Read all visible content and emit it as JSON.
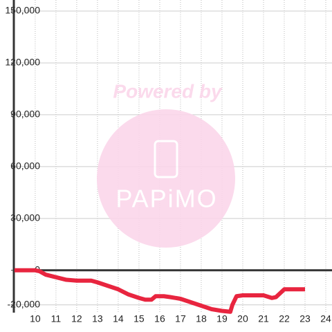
{
  "chart_data": {
    "type": "line",
    "watermark": {
      "top": "Powered by",
      "logo": "PAPiMO"
    },
    "x": [
      9,
      10,
      10.2,
      10.5,
      11,
      11.5,
      12,
      12.7,
      13,
      13.5,
      14,
      14.5,
      15,
      15.3,
      15.6,
      15.8,
      16.2,
      16.5,
      17,
      17.5,
      18,
      18.5,
      19,
      19.4,
      19.5,
      19.7,
      20,
      21,
      21.4,
      21.6,
      22,
      23
    ],
    "series": [
      {
        "color": "#e8253f",
        "values": [
          0,
          0,
          -500,
          -2500,
          -4000,
          -5500,
          -6000,
          -6000,
          -7000,
          -9000,
          -11000,
          -14000,
          -16000,
          -17000,
          -17000,
          -15000,
          -15000,
          -15500,
          -16500,
          -18500,
          -20500,
          -22500,
          -23500,
          -24000,
          -20000,
          -15000,
          -14500,
          -14500,
          -16000,
          -15500,
          -11000,
          -11000
        ]
      }
    ],
    "xlim": [
      8.97,
      24.3
    ],
    "xticks": [
      10,
      11,
      12,
      13,
      14,
      15,
      16,
      17,
      18,
      19,
      20,
      21,
      22,
      23,
      24
    ],
    "ylim": [
      -24500,
      150000
    ],
    "yticks": [
      {
        "value": 150000,
        "label": "150,000"
      },
      {
        "value": 120000,
        "label": "120,000"
      },
      {
        "value": 90000,
        "label": "90,000"
      },
      {
        "value": 60000,
        "label": "60,000"
      },
      {
        "value": 30000,
        "label": "30,000"
      },
      0,
      {
        "value": -20000,
        "label": "-20,000"
      }
    ],
    "grid": true
  }
}
